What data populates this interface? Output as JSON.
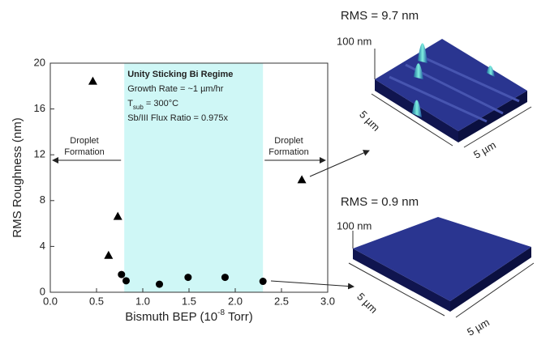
{
  "chart_data": {
    "type": "scatter",
    "x_label": [
      "Bismuth BEP (10",
      "-8",
      " Torr)"
    ],
    "y_label": "RMS Roughness (nm)",
    "xlim": [
      0,
      3
    ],
    "ylim": [
      0,
      20
    ],
    "xticks": [
      {
        "value": 0,
        "label": "0.0"
      },
      {
        "value": 0.5,
        "label": "0.5"
      },
      {
        "value": 1,
        "label": "1.0"
      },
      {
        "value": 1.5,
        "label": "1.5"
      },
      {
        "value": 2,
        "label": "2.0"
      },
      {
        "value": 2.5,
        "label": "2.5"
      },
      {
        "value": 3,
        "label": "3.0"
      }
    ],
    "yticks": [
      0,
      4,
      8,
      12,
      16,
      20
    ],
    "shade": {
      "xlim": [
        0.8,
        2.3
      ],
      "color": "#cff7f6"
    },
    "series": [
      {
        "marker": "triangle",
        "color": "#000000",
        "x": [
          0.46,
          0.73,
          0.63,
          2.72
        ],
        "values": [
          18.4,
          6.6,
          3.2,
          9.8
        ]
      },
      {
        "marker": "circle",
        "color": "#000000",
        "x": [
          0.77,
          0.82,
          1.18,
          1.49,
          1.89,
          2.3
        ],
        "values": [
          1.55,
          1.0,
          0.7,
          1.3,
          1.3,
          0.95
        ]
      }
    ],
    "regime": {
      "title": "Unity Sticking Bi Regime",
      "lines": [
        "Growth Rate = ~1 µm/hr"
      ],
      "tsub": [
        "T",
        "sub",
        " = 300°C"
      ],
      "flux": "Sb/III Flux Ratio = 0.975x"
    },
    "left_note": [
      "Droplet",
      "Formation"
    ],
    "right_note": [
      "Droplet",
      "Formation"
    ]
  },
  "images": [
    {
      "title": "RMS = 9.7 nm",
      "z_label": "100 nm",
      "x_label": "5 µm",
      "y_label": "5 µm"
    },
    {
      "title": "RMS = 0.9 nm",
      "z_label": "100 nm",
      "x_label": "5 µm",
      "y_label": "5 µm"
    }
  ]
}
